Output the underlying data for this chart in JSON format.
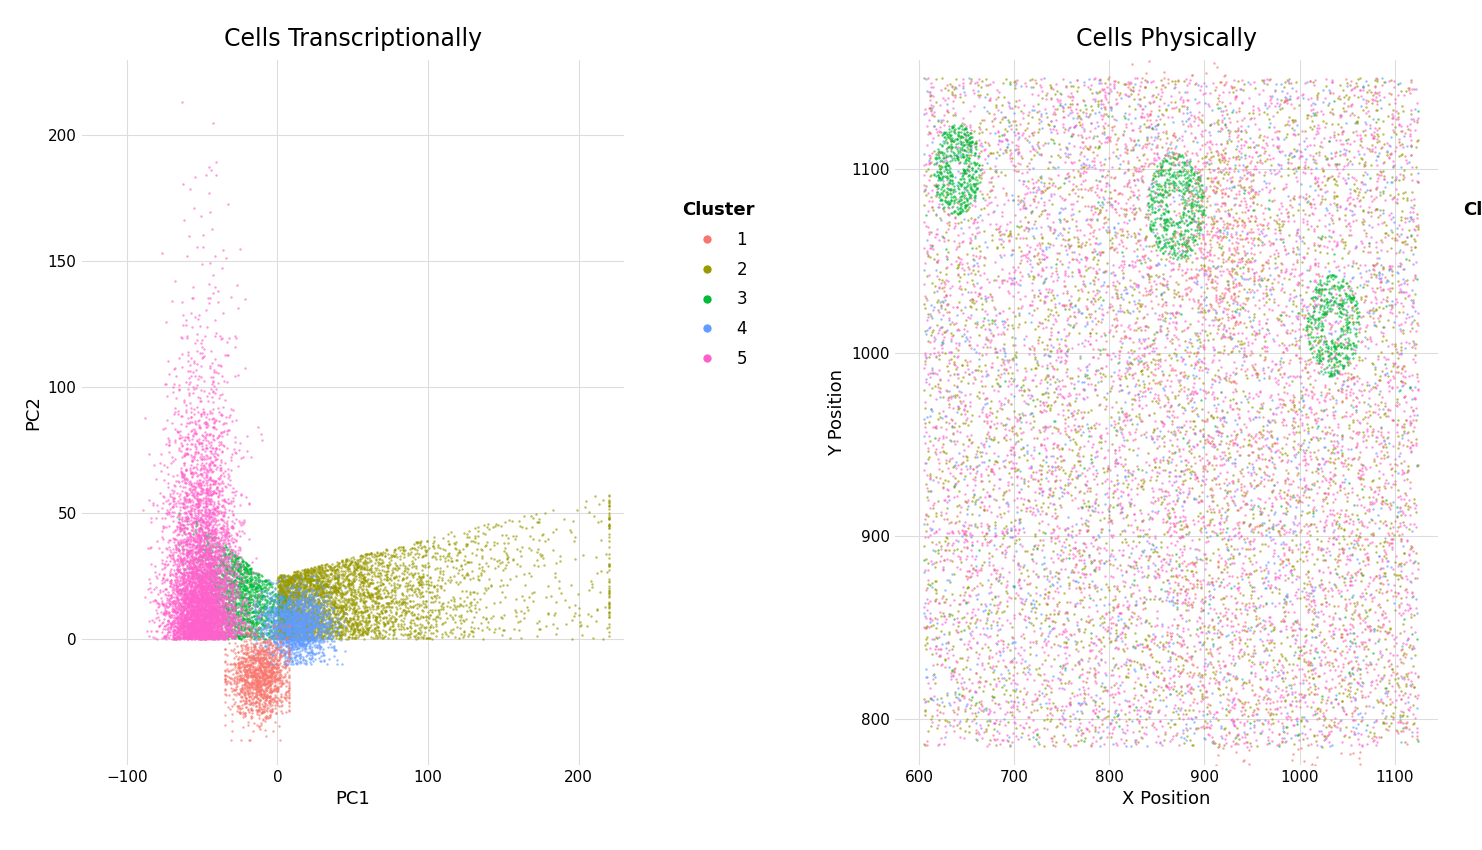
{
  "title_left": "Cells Transcriptionally",
  "title_right": "Cells Physically",
  "xlabel_left": "PC1",
  "ylabel_left": "PC2",
  "xlabel_right": "X Position",
  "ylabel_right": "Y Position",
  "xlim_left": [
    -130,
    230
  ],
  "ylim_left": [
    -50,
    230
  ],
  "xlim_right": [
    575,
    1145
  ],
  "ylim_right": [
    775,
    1160
  ],
  "xticks_left": [
    -100,
    0,
    100,
    200
  ],
  "yticks_left": [
    0,
    50,
    100,
    150,
    200
  ],
  "xticks_right": [
    600,
    700,
    800,
    900,
    1000,
    1100
  ],
  "yticks_right": [
    800,
    900,
    1000,
    1100
  ],
  "cluster_colors": {
    "1": "#F8766D",
    "2": "#999900",
    "3": "#00BA38",
    "4": "#619CFF",
    "5": "#FF61CC"
  },
  "cluster_labels": [
    "1",
    "2",
    "3",
    "4",
    "5"
  ],
  "n_cells": 15000,
  "seed": 42,
  "point_size": 3,
  "alpha": 0.65,
  "background_color": "#FFFFFF",
  "grid_color": "#DDDDDD",
  "title_fontsize": 17,
  "label_fontsize": 13,
  "tick_fontsize": 11,
  "legend_title_fontsize": 13,
  "legend_fontsize": 12
}
